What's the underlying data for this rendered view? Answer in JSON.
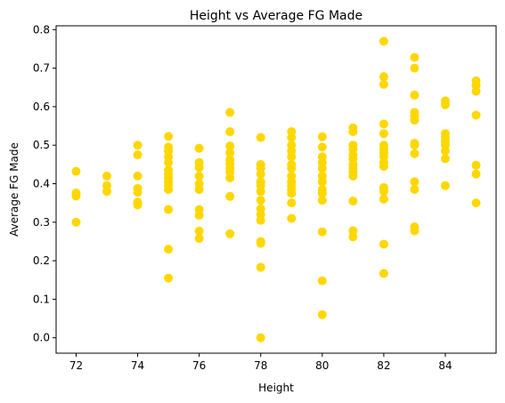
{
  "chart_data": {
    "type": "scatter",
    "title": "Height vs Average FG Made",
    "xlabel": "Height",
    "ylabel": "Average FG Made",
    "xlim": [
      71.35,
      85.65
    ],
    "ylim": [
      -0.04,
      0.81
    ],
    "xticks": [
      72,
      74,
      76,
      78,
      80,
      82,
      84
    ],
    "yticks": [
      0.0,
      0.1,
      0.2,
      0.3,
      0.4,
      0.5,
      0.6,
      0.7,
      0.8
    ],
    "ytick_labels": [
      "0.0",
      "0.1",
      "0.2",
      "0.3",
      "0.4",
      "0.5",
      "0.6",
      "0.7",
      "0.8"
    ],
    "grid": false,
    "marker_color": "#ffd700",
    "points": [
      {
        "x": 72,
        "y": 0.432
      },
      {
        "x": 72,
        "y": 0.376
      },
      {
        "x": 72,
        "y": 0.368
      },
      {
        "x": 72,
        "y": 0.3
      },
      {
        "x": 73,
        "y": 0.42
      },
      {
        "x": 73,
        "y": 0.395
      },
      {
        "x": 73,
        "y": 0.38
      },
      {
        "x": 74,
        "y": 0.5
      },
      {
        "x": 74,
        "y": 0.475
      },
      {
        "x": 74,
        "y": 0.42
      },
      {
        "x": 74,
        "y": 0.388
      },
      {
        "x": 74,
        "y": 0.378
      },
      {
        "x": 74,
        "y": 0.352
      },
      {
        "x": 74,
        "y": 0.345
      },
      {
        "x": 75,
        "y": 0.523
      },
      {
        "x": 75,
        "y": 0.495
      },
      {
        "x": 75,
        "y": 0.485
      },
      {
        "x": 75,
        "y": 0.47
      },
      {
        "x": 75,
        "y": 0.455
      },
      {
        "x": 75,
        "y": 0.435
      },
      {
        "x": 75,
        "y": 0.425
      },
      {
        "x": 75,
        "y": 0.415
      },
      {
        "x": 75,
        "y": 0.405
      },
      {
        "x": 75,
        "y": 0.395
      },
      {
        "x": 75,
        "y": 0.385
      },
      {
        "x": 75,
        "y": 0.333
      },
      {
        "x": 75,
        "y": 0.23
      },
      {
        "x": 75,
        "y": 0.155
      },
      {
        "x": 76,
        "y": 0.492
      },
      {
        "x": 76,
        "y": 0.455
      },
      {
        "x": 76,
        "y": 0.442
      },
      {
        "x": 76,
        "y": 0.42
      },
      {
        "x": 76,
        "y": 0.4
      },
      {
        "x": 76,
        "y": 0.385
      },
      {
        "x": 76,
        "y": 0.333
      },
      {
        "x": 76,
        "y": 0.318
      },
      {
        "x": 76,
        "y": 0.277
      },
      {
        "x": 76,
        "y": 0.258
      },
      {
        "x": 77,
        "y": 0.585
      },
      {
        "x": 77,
        "y": 0.535
      },
      {
        "x": 77,
        "y": 0.498
      },
      {
        "x": 77,
        "y": 0.48
      },
      {
        "x": 77,
        "y": 0.462
      },
      {
        "x": 77,
        "y": 0.452
      },
      {
        "x": 77,
        "y": 0.44
      },
      {
        "x": 77,
        "y": 0.43
      },
      {
        "x": 77,
        "y": 0.415
      },
      {
        "x": 77,
        "y": 0.367
      },
      {
        "x": 77,
        "y": 0.27
      },
      {
        "x": 78,
        "y": 0.52
      },
      {
        "x": 78,
        "y": 0.45
      },
      {
        "x": 78,
        "y": 0.44
      },
      {
        "x": 78,
        "y": 0.425
      },
      {
        "x": 78,
        "y": 0.405
      },
      {
        "x": 78,
        "y": 0.395
      },
      {
        "x": 78,
        "y": 0.38
      },
      {
        "x": 78,
        "y": 0.357
      },
      {
        "x": 78,
        "y": 0.335
      },
      {
        "x": 78,
        "y": 0.32
      },
      {
        "x": 78,
        "y": 0.305
      },
      {
        "x": 78,
        "y": 0.25
      },
      {
        "x": 78,
        "y": 0.245
      },
      {
        "x": 78,
        "y": 0.183
      },
      {
        "x": 78,
        "y": 0.0
      },
      {
        "x": 79,
        "y": 0.535
      },
      {
        "x": 79,
        "y": 0.52
      },
      {
        "x": 79,
        "y": 0.5
      },
      {
        "x": 79,
        "y": 0.485
      },
      {
        "x": 79,
        "y": 0.47
      },
      {
        "x": 79,
        "y": 0.45
      },
      {
        "x": 79,
        "y": 0.44
      },
      {
        "x": 79,
        "y": 0.42
      },
      {
        "x": 79,
        "y": 0.405
      },
      {
        "x": 79,
        "y": 0.395
      },
      {
        "x": 79,
        "y": 0.385
      },
      {
        "x": 79,
        "y": 0.375
      },
      {
        "x": 79,
        "y": 0.35
      },
      {
        "x": 79,
        "y": 0.31
      },
      {
        "x": 80,
        "y": 0.522
      },
      {
        "x": 80,
        "y": 0.495
      },
      {
        "x": 80,
        "y": 0.47
      },
      {
        "x": 80,
        "y": 0.455
      },
      {
        "x": 80,
        "y": 0.44
      },
      {
        "x": 80,
        "y": 0.42
      },
      {
        "x": 80,
        "y": 0.405
      },
      {
        "x": 80,
        "y": 0.385
      },
      {
        "x": 80,
        "y": 0.375
      },
      {
        "x": 80,
        "y": 0.357
      },
      {
        "x": 80,
        "y": 0.275
      },
      {
        "x": 80,
        "y": 0.148
      },
      {
        "x": 80,
        "y": 0.06
      },
      {
        "x": 81,
        "y": 0.545
      },
      {
        "x": 81,
        "y": 0.535
      },
      {
        "x": 81,
        "y": 0.5
      },
      {
        "x": 81,
        "y": 0.49
      },
      {
        "x": 81,
        "y": 0.475
      },
      {
        "x": 81,
        "y": 0.465
      },
      {
        "x": 81,
        "y": 0.45
      },
      {
        "x": 81,
        "y": 0.44
      },
      {
        "x": 81,
        "y": 0.43
      },
      {
        "x": 81,
        "y": 0.42
      },
      {
        "x": 81,
        "y": 0.355
      },
      {
        "x": 81,
        "y": 0.278
      },
      {
        "x": 81,
        "y": 0.262
      },
      {
        "x": 82,
        "y": 0.77
      },
      {
        "x": 82,
        "y": 0.678
      },
      {
        "x": 82,
        "y": 0.658
      },
      {
        "x": 82,
        "y": 0.555
      },
      {
        "x": 82,
        "y": 0.53
      },
      {
        "x": 82,
        "y": 0.5
      },
      {
        "x": 82,
        "y": 0.49
      },
      {
        "x": 82,
        "y": 0.48
      },
      {
        "x": 82,
        "y": 0.47
      },
      {
        "x": 82,
        "y": 0.455
      },
      {
        "x": 82,
        "y": 0.445
      },
      {
        "x": 82,
        "y": 0.39
      },
      {
        "x": 82,
        "y": 0.38
      },
      {
        "x": 82,
        "y": 0.36
      },
      {
        "x": 82,
        "y": 0.243
      },
      {
        "x": 82,
        "y": 0.167
      },
      {
        "x": 83,
        "y": 0.728
      },
      {
        "x": 83,
        "y": 0.7
      },
      {
        "x": 83,
        "y": 0.63
      },
      {
        "x": 83,
        "y": 0.585
      },
      {
        "x": 83,
        "y": 0.575
      },
      {
        "x": 83,
        "y": 0.565
      },
      {
        "x": 83,
        "y": 0.505
      },
      {
        "x": 83,
        "y": 0.5
      },
      {
        "x": 83,
        "y": 0.478
      },
      {
        "x": 83,
        "y": 0.405
      },
      {
        "x": 83,
        "y": 0.385
      },
      {
        "x": 83,
        "y": 0.288
      },
      {
        "x": 83,
        "y": 0.278
      },
      {
        "x": 84,
        "y": 0.615
      },
      {
        "x": 84,
        "y": 0.605
      },
      {
        "x": 84,
        "y": 0.53
      },
      {
        "x": 84,
        "y": 0.52
      },
      {
        "x": 84,
        "y": 0.51
      },
      {
        "x": 84,
        "y": 0.5
      },
      {
        "x": 84,
        "y": 0.485
      },
      {
        "x": 84,
        "y": 0.465
      },
      {
        "x": 84,
        "y": 0.395
      },
      {
        "x": 85,
        "y": 0.667
      },
      {
        "x": 85,
        "y": 0.655
      },
      {
        "x": 85,
        "y": 0.64
      },
      {
        "x": 85,
        "y": 0.578
      },
      {
        "x": 85,
        "y": 0.448
      },
      {
        "x": 85,
        "y": 0.425
      },
      {
        "x": 85,
        "y": 0.35
      }
    ]
  }
}
